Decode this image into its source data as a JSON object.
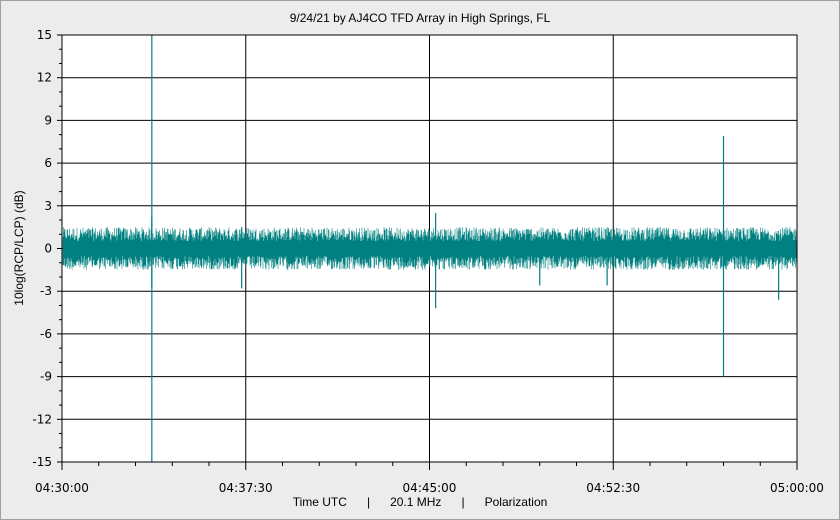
{
  "chart_data": {
    "type": "line",
    "title": "9/24/21  by  AJ4CO TFD Array  in  High Springs, FL",
    "ylabel": "10log(RCP/LCP) (dB)",
    "xlabel_parts": [
      "Time UTC",
      "|",
      "20.1 MHz",
      "|",
      "Polarization"
    ],
    "ylim": [
      -15,
      15
    ],
    "yticks": [
      15,
      12,
      9,
      6,
      3,
      0,
      -3,
      -6,
      -9,
      -12,
      -15
    ],
    "xlim_seconds": [
      0,
      1800
    ],
    "xticks": [
      "04:30:00",
      "04:37:30",
      "04:45:00",
      "04:52:30",
      "05:00:00"
    ],
    "grid": true,
    "series": [
      {
        "color": "#008080",
        "baseline_db": 0,
        "noise_band_db": [
          -1.5,
          1.5
        ],
        "spikes": [
          {
            "time": "04:33:40",
            "min_db": -15,
            "max_db": 15
          },
          {
            "time": "04:33:40",
            "min_db": -2.7,
            "max_db": 2.2
          },
          {
            "time": "04:37:20",
            "min_db": -2.8,
            "max_db": 1.5
          },
          {
            "time": "04:45:15",
            "min_db": -4.2,
            "max_db": 2.5
          },
          {
            "time": "04:49:30",
            "min_db": -2.6,
            "max_db": 0.8
          },
          {
            "time": "04:52:15",
            "min_db": -2.6,
            "max_db": 0.9
          },
          {
            "time": "04:57:00",
            "min_db": -9,
            "max_db": 7.9
          },
          {
            "time": "04:59:15",
            "min_db": -3.6,
            "max_db": 0.5
          }
        ]
      }
    ]
  }
}
